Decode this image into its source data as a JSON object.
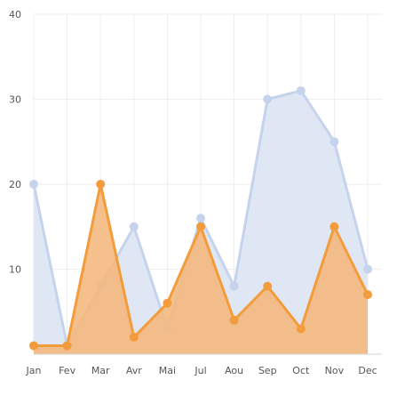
{
  "chart_data": {
    "type": "area",
    "categories": [
      "Jan",
      "Fev",
      "Mar",
      "Avr",
      "Mai",
      "Jul",
      "Aou",
      "Sep",
      "Oct",
      "Nov",
      "Dec"
    ],
    "ylim": [
      0,
      40
    ],
    "yticks": [
      "10",
      "20",
      "30",
      "40"
    ],
    "grid": true,
    "title": "",
    "xlabel": "",
    "ylabel": "",
    "series": [
      {
        "values": [
          20,
          1,
          8,
          15,
          3,
          16,
          8,
          30,
          31,
          25,
          10
        ],
        "line_color": "#c5d3ec",
        "fill_color": "#dde4f3",
        "point_color": "#c5d3ec"
      },
      {
        "values": [
          1,
          1,
          20,
          2,
          6,
          15,
          4,
          8,
          3,
          15,
          7
        ],
        "line_color": "#f39c3c",
        "fill_color": "#f5b77c",
        "point_color": "#f39c3c"
      }
    ]
  }
}
